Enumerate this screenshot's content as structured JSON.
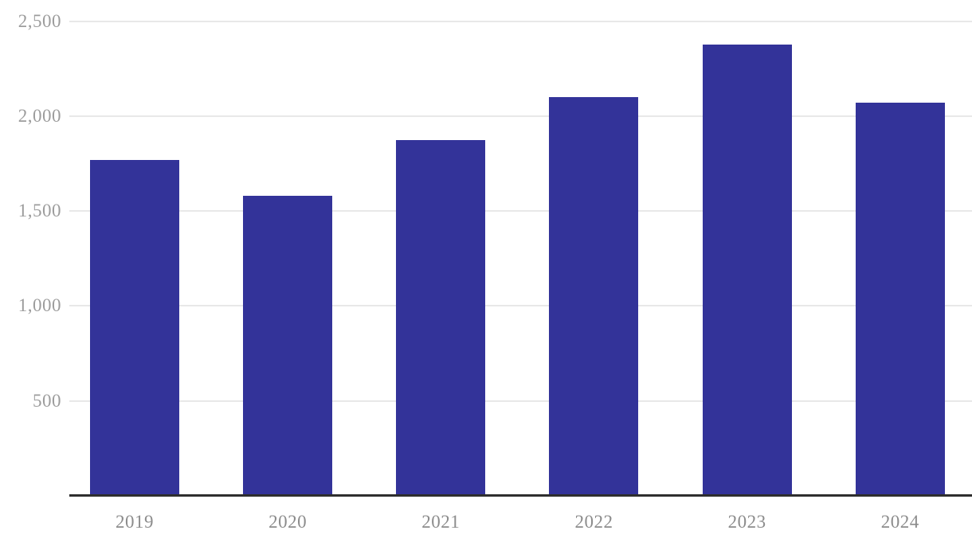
{
  "chart_data": {
    "type": "bar",
    "title": "",
    "xlabel": "",
    "ylabel": "",
    "categories": [
      "2019",
      "2020",
      "2021",
      "2022",
      "2023",
      "2024"
    ],
    "values": [
      1770,
      1580,
      1875,
      2100,
      2375,
      2070
    ],
    "ylim": [
      0,
      2500
    ],
    "yticks": [
      500,
      1000,
      1500,
      2000,
      2500
    ],
    "ytick_labels": [
      "500",
      "1,000",
      "1,500",
      "2,000",
      "2,500"
    ],
    "grid": true,
    "legend": false,
    "colors": {
      "bar": "#333399",
      "gridline": "#e8e8e8",
      "axis_line": "#2e2e2e",
      "y_tick_label": "#9c9c9c",
      "x_tick_label": "#8c8c8c",
      "background": "#ffffff"
    }
  }
}
